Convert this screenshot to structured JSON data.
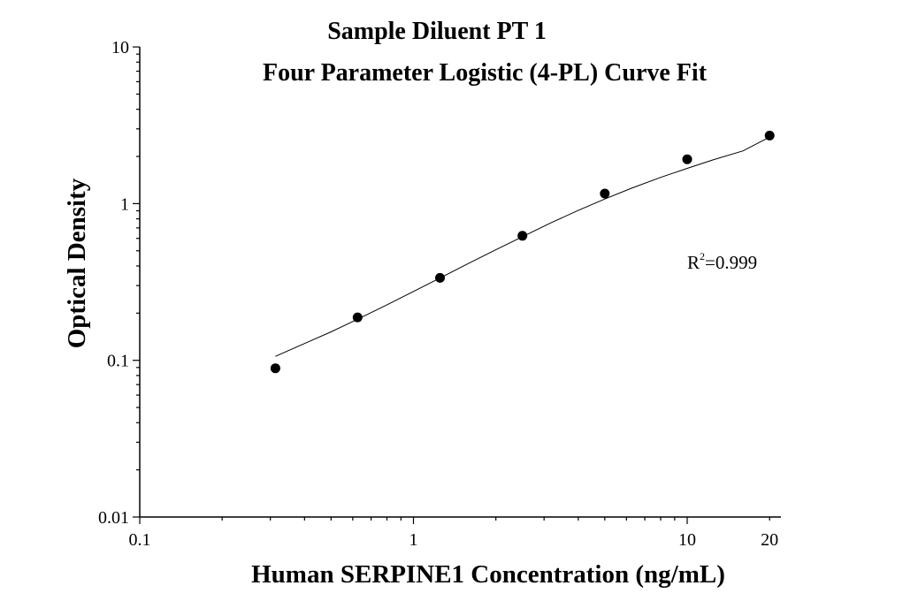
{
  "chart_data": {
    "type": "scatter",
    "title": "Sample Diluent PT 1",
    "subtitle": "Four Parameter Logistic (4-PL) Curve Fit",
    "xlabel": "Human SERPINE1 Concentration (ng/mL)",
    "ylabel": "Optical Density",
    "x_scale": "log",
    "y_scale": "log",
    "xlim": [
      0.1,
      20
    ],
    "ylim": [
      0.01,
      10
    ],
    "x_ticks": [
      {
        "value": 0.1,
        "label": "0.1"
      },
      {
        "value": 1,
        "label": "1"
      },
      {
        "value": 10,
        "label": "10"
      },
      {
        "value": 20,
        "label": "20"
      }
    ],
    "y_ticks": [
      {
        "value": 0.01,
        "label": "0.01"
      },
      {
        "value": 0.1,
        "label": "0.1"
      },
      {
        "value": 1,
        "label": "1"
      },
      {
        "value": 10,
        "label": "10"
      }
    ],
    "grid": false,
    "series": [
      {
        "x": [
          0.313,
          0.625,
          1.25,
          2.5,
          5,
          10,
          20
        ],
        "y": [
          0.089,
          0.188,
          0.336,
          0.623,
          1.16,
          1.92,
          2.72
        ]
      }
    ],
    "fit_curve": {
      "model": "4-PL",
      "x": [
        0.313,
        0.4,
        0.5,
        0.625,
        0.8,
        1.0,
        1.25,
        1.6,
        2.0,
        2.5,
        3.2,
        4.0,
        5.0,
        6.3,
        8.0,
        10.0,
        12.5,
        16.0,
        20.0
      ],
      "y": [
        0.106,
        0.128,
        0.152,
        0.183,
        0.226,
        0.275,
        0.335,
        0.418,
        0.508,
        0.615,
        0.758,
        0.905,
        1.07,
        1.26,
        1.47,
        1.68,
        1.91,
        2.17,
        2.66
      ]
    },
    "annotations": [
      {
        "base": "R",
        "superscript": "2",
        "text": "=0.999"
      }
    ]
  }
}
